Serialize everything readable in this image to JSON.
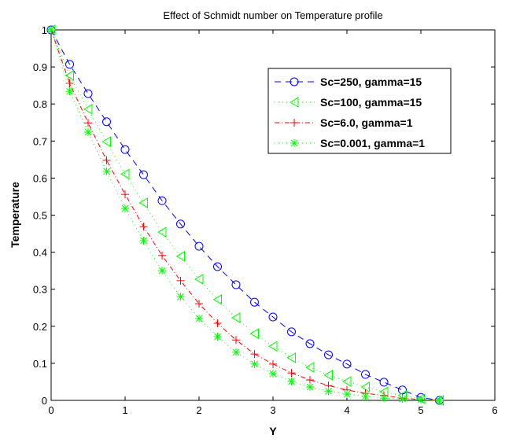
{
  "chart_data": {
    "type": "line",
    "title": "Effect of Schmidt number on Temperature profile",
    "xlabel": "Y",
    "ylabel": "Temperature",
    "xlim": [
      0,
      6
    ],
    "ylim": [
      0,
      1
    ],
    "xticks": [
      "0",
      "1",
      "2",
      "3",
      "4",
      "5",
      "6"
    ],
    "yticks": [
      "0",
      "0.1",
      "0.2",
      "0.3",
      "0.4",
      "0.5",
      "0.6",
      "0.7",
      "0.8",
      "0.9",
      "1"
    ],
    "grid": false,
    "legend_position": "top-right",
    "x": [
      0,
      0.25,
      0.5,
      0.75,
      1,
      1.25,
      1.5,
      1.75,
      2,
      2.25,
      2.5,
      2.75,
      3,
      3.25,
      3.5,
      3.75,
      4,
      4.25,
      4.5,
      4.75,
      5,
      5.25
    ],
    "series": [
      {
        "name": "Sc=250, gamma=15",
        "color": "#0000ff",
        "dash": "8,6",
        "marker": "circle",
        "values": [
          1,
          0.907,
          0.828,
          0.752,
          0.677,
          0.609,
          0.539,
          0.476,
          0.416,
          0.361,
          0.312,
          0.265,
          0.225,
          0.185,
          0.153,
          0.123,
          0.098,
          0.07,
          0.049,
          0.028,
          0.008,
          0
        ]
      },
      {
        "name": "Sc=100, gamma=15",
        "color": "#00ff00",
        "dash": "1,4",
        "marker": "triangle-left",
        "values": [
          1,
          0.877,
          0.786,
          0.698,
          0.611,
          0.533,
          0.454,
          0.389,
          0.327,
          0.272,
          0.223,
          0.18,
          0.146,
          0.115,
          0.089,
          0.068,
          0.051,
          0.036,
          0.023,
          0.013,
          0.004,
          0
        ]
      },
      {
        "name": "Sc=6.0, gamma=1",
        "color": "#ff0000",
        "dash": "6,3,1,3",
        "marker": "plus",
        "values": [
          1,
          0.856,
          0.749,
          0.648,
          0.556,
          0.469,
          0.391,
          0.323,
          0.261,
          0.208,
          0.163,
          0.125,
          0.098,
          0.074,
          0.055,
          0.04,
          0.028,
          0.019,
          0.013,
          0.006,
          0.002,
          0
        ]
      },
      {
        "name": "Sc=0.001, gamma=1",
        "color": "#00ff00",
        "dash": "1,4",
        "marker": "star",
        "values": [
          1,
          0.834,
          0.724,
          0.618,
          0.518,
          0.431,
          0.35,
          0.28,
          0.221,
          0.172,
          0.13,
          0.098,
          0.072,
          0.051,
          0.036,
          0.025,
          0.017,
          0.011,
          0.006,
          0.004,
          0.002,
          0
        ]
      }
    ]
  }
}
